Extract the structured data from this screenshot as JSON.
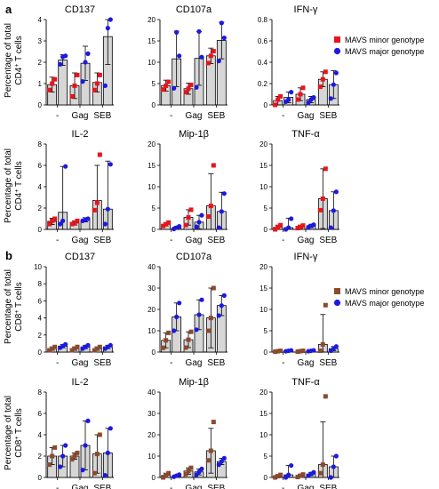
{
  "figure": {
    "panels": [
      {
        "letter": "a",
        "cell": "CD4",
        "ylabel_line1": "Percentage of total",
        "ylabel_line2_pre": "CD4",
        "ylabel_line2_sup": "+",
        "ylabel_line2_post": " T cells"
      },
      {
        "letter": "b",
        "cell": "CD8",
        "ylabel_line1": "Percentage of total",
        "ylabel_line2_pre": "CD8",
        "ylabel_line2_sup": "+",
        "ylabel_line2_post": " T cells"
      }
    ]
  },
  "legend": {
    "a": {
      "items": [
        {
          "label": "MAVS minor genotype",
          "color": "#e8141c",
          "marker": "square"
        },
        {
          "label": "MAVS major genotype",
          "color": "#1c19e0",
          "marker": "circle"
        }
      ]
    },
    "b": {
      "items": [
        {
          "label": "MAVS minor genotype",
          "color": "#8a4a2e",
          "marker": "square"
        },
        {
          "label": "MAVS major genotype",
          "color": "#1c19e0",
          "marker": "circle"
        }
      ]
    }
  },
  "chart_data": [
    {
      "type": "bar",
      "panel": "a",
      "title": "CD137",
      "categories": [
        "-",
        "Gag",
        "SEB"
      ],
      "ylim": [
        0,
        4
      ],
      "yticks": [
        0,
        1,
        2,
        3,
        4
      ],
      "series": [
        {
          "name": "MAVS minor genotype",
          "values": [
            0.95,
            0.9,
            1.05
          ],
          "err": [
            0.35,
            0.6,
            0.45
          ],
          "points": [
            [
              0.7,
              1.0,
              1.2
            ],
            [
              0.4,
              0.9,
              1.4
            ],
            [
              0.7,
              1.0,
              1.4
            ]
          ]
        },
        {
          "name": "MAVS major genotype",
          "values": [
            2.1,
            1.95,
            3.2
          ],
          "err": [
            0.25,
            0.8,
            1.3
          ],
          "points": [
            [
              1.9,
              2.25,
              2.3
            ],
            [
              1.1,
              2.0,
              2.4
            ],
            [
              0.9,
              3.6,
              4.0
            ]
          ]
        }
      ]
    },
    {
      "type": "bar",
      "panel": "a",
      "title": "CD107a",
      "categories": [
        "-",
        "Gag",
        "SEB"
      ],
      "ylim": [
        0,
        20
      ],
      "yticks": [
        0,
        5,
        10,
        15,
        20
      ],
      "series": [
        {
          "name": "MAVS minor genotype",
          "values": [
            4.5,
            3.8,
            11.5
          ],
          "err": [
            1.3,
            1.3,
            1.8
          ],
          "points": [
            [
              3.6,
              4.5,
              5.4
            ],
            [
              3.0,
              3.8,
              4.7
            ],
            [
              9.8,
              11.5,
              12.6
            ]
          ]
        },
        {
          "name": "MAVS major genotype",
          "values": [
            10.8,
            10.9,
            15.1
          ],
          "err": [
            6.5,
            6.3,
            4.3
          ],
          "points": [
            [
              3.9,
              17.0,
              11.5
            ],
            [
              4.1,
              17.2,
              11.2
            ],
            [
              10.3,
              19.2,
              15.7
            ]
          ]
        }
      ]
    },
    {
      "type": "bar",
      "panel": "a",
      "title": "IFN-γ",
      "categories": [
        "-",
        "Gag",
        "SEB"
      ],
      "ylim": [
        0,
        0.8
      ],
      "yticks": [
        0,
        0.2,
        0.4,
        0.6,
        0.8
      ],
      "series": [
        {
          "name": "MAVS minor genotype",
          "values": [
            0.04,
            0.1,
            0.24
          ],
          "err": [
            0.04,
            0.06,
            0.07
          ],
          "points": [
            [
              0.0,
              0.05,
              0.08
            ],
            [
              0.05,
              0.1,
              0.16
            ],
            [
              0.17,
              0.24,
              0.31
            ]
          ]
        },
        {
          "name": "MAVS major genotype",
          "values": [
            0.07,
            0.05,
            0.19
          ],
          "err": [
            0.05,
            0.03,
            0.13
          ],
          "points": [
            [
              0.03,
              0.05,
              0.12
            ],
            [
              0.02,
              0.05,
              0.07
            ],
            [
              0.06,
              0.19,
              0.3
            ]
          ]
        }
      ]
    },
    {
      "type": "bar",
      "panel": "a",
      "title": "IL-2",
      "categories": [
        "-",
        "Gag",
        "SEB"
      ],
      "ylim": [
        0,
        8
      ],
      "yticks": [
        0,
        2,
        4,
        6,
        8
      ],
      "series": [
        {
          "name": "MAVS minor genotype",
          "values": [
            0.75,
            0.6,
            2.7
          ],
          "err": [
            0.3,
            0.2,
            3.3
          ],
          "points": [
            [
              0.5,
              0.8,
              1.0
            ],
            [
              0.5,
              0.6,
              0.8
            ],
            [
              1.8,
              2.5,
              7.0
            ]
          ]
        },
        {
          "name": "MAVS major genotype",
          "values": [
            1.6,
            0.9,
            1.9
          ],
          "err": [
            4.3,
            0.2,
            4.5
          ],
          "points": [
            [
              0.5,
              0.8,
              5.9
            ],
            [
              0.8,
              0.9,
              1.0
            ],
            [
              0.5,
              1.9,
              6.1
            ]
          ]
        }
      ]
    },
    {
      "type": "bar",
      "panel": "a",
      "title": "Mip-1β",
      "categories": [
        "-",
        "Gag",
        "SEB"
      ],
      "ylim": [
        0,
        20
      ],
      "yticks": [
        0,
        5,
        10,
        15,
        20
      ],
      "series": [
        {
          "name": "MAVS minor genotype",
          "values": [
            1.2,
            2.8,
            5.5
          ],
          "err": [
            0.4,
            1.8,
            7.5
          ],
          "points": [
            [
              0.8,
              1.2,
              1.6
            ],
            [
              1.0,
              2.8,
              4.6
            ],
            [
              3.0,
              5.5,
              15.0
            ]
          ]
        },
        {
          "name": "MAVS major genotype",
          "values": [
            0.4,
            1.7,
            4.2
          ],
          "err": [
            0.3,
            1.6,
            4.5
          ],
          "points": [
            [
              0.1,
              0.4,
              0.7
            ],
            [
              0.6,
              1.7,
              3.3
            ],
            [
              0.4,
              4.2,
              8.4
            ]
          ]
        }
      ]
    },
    {
      "type": "bar",
      "panel": "a",
      "title": "TNF-α",
      "categories": [
        "-",
        "Gag",
        "SEB"
      ],
      "ylim": [
        0,
        20
      ],
      "yticks": [
        0,
        5,
        10,
        15,
        20
      ],
      "series": [
        {
          "name": "MAVS minor genotype",
          "values": [
            0.5,
            0.6,
            7.2
          ],
          "err": [
            0.5,
            0.3,
            7.0
          ],
          "points": [
            [
              0.0,
              0.5,
              1.0
            ],
            [
              0.3,
              0.6,
              0.9
            ],
            [
              4.5,
              7.2,
              14.2
            ]
          ]
        },
        {
          "name": "MAVS major genotype",
          "values": [
            0.4,
            0.8,
            4.4
          ],
          "err": [
            2.2,
            0.4,
            4.4
          ],
          "points": [
            [
              0.0,
              0.4,
              2.5
            ],
            [
              0.5,
              0.8,
              1.1
            ],
            [
              0.4,
              4.4,
              8.8
            ]
          ]
        }
      ]
    },
    {
      "type": "bar",
      "panel": "b",
      "title": "CD137",
      "categories": [
        "-",
        "Gag",
        "SEB"
      ],
      "ylim": [
        0,
        10
      ],
      "yticks": [
        0,
        2,
        4,
        6,
        8,
        10
      ],
      "series": [
        {
          "name": "MAVS minor genotype",
          "values": [
            0.4,
            0.4,
            0.4
          ],
          "err": [
            0.2,
            0.2,
            0.2
          ],
          "points": [
            [
              0.2,
              0.4,
              0.6
            ],
            [
              0.2,
              0.4,
              0.6
            ],
            [
              0.2,
              0.4,
              0.6
            ]
          ]
        },
        {
          "name": "MAVS major genotype",
          "values": [
            0.7,
            0.6,
            0.6
          ],
          "err": [
            0.2,
            0.2,
            0.2
          ],
          "points": [
            [
              0.5,
              0.7,
              0.9
            ],
            [
              0.4,
              0.6,
              0.8
            ],
            [
              0.4,
              0.6,
              0.8
            ]
          ]
        }
      ]
    },
    {
      "type": "bar",
      "panel": "b",
      "title": "CD107a",
      "categories": [
        "-",
        "Gag",
        "SEB"
      ],
      "ylim": [
        0,
        40
      ],
      "yticks": [
        0,
        10,
        20,
        30,
        40
      ],
      "series": [
        {
          "name": "MAVS minor genotype",
          "values": [
            5.5,
            5.8,
            16.0
          ],
          "err": [
            3.5,
            3.7,
            14.0
          ],
          "points": [
            [
              2.0,
              5.5,
              9.0
            ],
            [
              2.1,
              5.8,
              9.5
            ],
            [
              10.0,
              16.0,
              30.0
            ]
          ]
        },
        {
          "name": "MAVS major genotype",
          "values": [
            16.5,
            17.5,
            21.8
          ],
          "err": [
            6.5,
            7.0,
            4.7
          ],
          "points": [
            [
              10.0,
              16.5,
              23.0
            ],
            [
              10.5,
              17.5,
              24.5
            ],
            [
              17.1,
              21.8,
              26.5
            ]
          ]
        }
      ]
    },
    {
      "type": "bar",
      "panel": "b",
      "title": "IFN-γ",
      "categories": [
        "-",
        "Gag",
        "SEB"
      ],
      "ylim": [
        0,
        20
      ],
      "yticks": [
        0,
        5,
        10,
        15,
        20
      ],
      "series": [
        {
          "name": "MAVS minor genotype",
          "values": [
            0.2,
            0.2,
            1.8
          ],
          "err": [
            0.1,
            0.1,
            7.0
          ],
          "points": [
            [
              0.1,
              0.2,
              0.3
            ],
            [
              0.1,
              0.2,
              0.3
            ],
            [
              0.3,
              1.8,
              11.0
            ]
          ]
        },
        {
          "name": "MAVS major genotype",
          "values": [
            0.3,
            0.3,
            0.8
          ],
          "err": [
            0.1,
            0.1,
            0.5
          ],
          "points": [
            [
              0.2,
              0.3,
              0.4
            ],
            [
              0.2,
              0.3,
              0.4
            ],
            [
              0.3,
              0.8,
              1.3
            ]
          ]
        }
      ]
    },
    {
      "type": "bar",
      "panel": "b",
      "title": "IL-2",
      "categories": [
        "-",
        "Gag",
        "SEB"
      ],
      "ylim": [
        0,
        8
      ],
      "yticks": [
        0,
        2,
        4,
        6,
        8
      ],
      "series": [
        {
          "name": "MAVS minor genotype",
          "values": [
            2.0,
            2.0,
            2.2
          ],
          "err": [
            0.8,
            0.3,
            1.8
          ],
          "points": [
            [
              1.2,
              2.0,
              2.8
            ],
            [
              1.7,
              2.0,
              2.3
            ],
            [
              0.4,
              2.2,
              4.0
            ]
          ]
        },
        {
          "name": "MAVS major genotype",
          "values": [
            2.0,
            3.0,
            2.3
          ],
          "err": [
            1.0,
            2.3,
            2.3
          ],
          "points": [
            [
              1.0,
              2.0,
              3.0
            ],
            [
              0.7,
              3.0,
              5.3
            ],
            [
              0.2,
              2.3,
              4.6
            ]
          ]
        }
      ]
    },
    {
      "type": "bar",
      "panel": "b",
      "title": "Mip-1β",
      "categories": [
        "-",
        "Gag",
        "SEB"
      ],
      "ylim": [
        0,
        40
      ],
      "yticks": [
        0,
        10,
        20,
        30,
        40
      ],
      "series": [
        {
          "name": "MAVS minor genotype",
          "values": [
            1.0,
            3.0,
            12.5
          ],
          "err": [
            1.0,
            1.5,
            10.5
          ],
          "points": [
            [
              0.0,
              1.0,
              2.0
            ],
            [
              1.5,
              3.0,
              4.5
            ],
            [
              8.0,
              12.5,
              26.0
            ]
          ]
        },
        {
          "name": "MAVS major genotype",
          "values": [
            0.8,
            2.6,
            7.5
          ],
          "err": [
            0.5,
            1.4,
            1.5
          ],
          "points": [
            [
              0.3,
              0.8,
              1.3
            ],
            [
              1.2,
              2.6,
              4.0
            ],
            [
              6.0,
              7.5,
              9.0
            ]
          ]
        }
      ]
    },
    {
      "type": "bar",
      "panel": "b",
      "title": "TNF-α",
      "categories": [
        "-",
        "Gag",
        "SEB"
      ],
      "ylim": [
        0,
        20
      ],
      "yticks": [
        0,
        5,
        10,
        15,
        20
      ],
      "series": [
        {
          "name": "MAVS minor genotype",
          "values": [
            0.3,
            0.4,
            3.0
          ],
          "err": [
            0.3,
            0.3,
            10.0
          ],
          "points": [
            [
              0.0,
              0.3,
              0.6
            ],
            [
              0.1,
              0.4,
              0.7
            ],
            [
              1.0,
              3.0,
              19.0
            ]
          ]
        },
        {
          "name": "MAVS major genotype",
          "values": [
            0.6,
            0.8,
            2.5
          ],
          "err": [
            2.2,
            0.4,
            2.5
          ],
          "points": [
            [
              0.0,
              0.6,
              2.8
            ],
            [
              0.4,
              0.8,
              1.2
            ],
            [
              0.0,
              2.5,
              5.0
            ]
          ]
        }
      ]
    }
  ]
}
